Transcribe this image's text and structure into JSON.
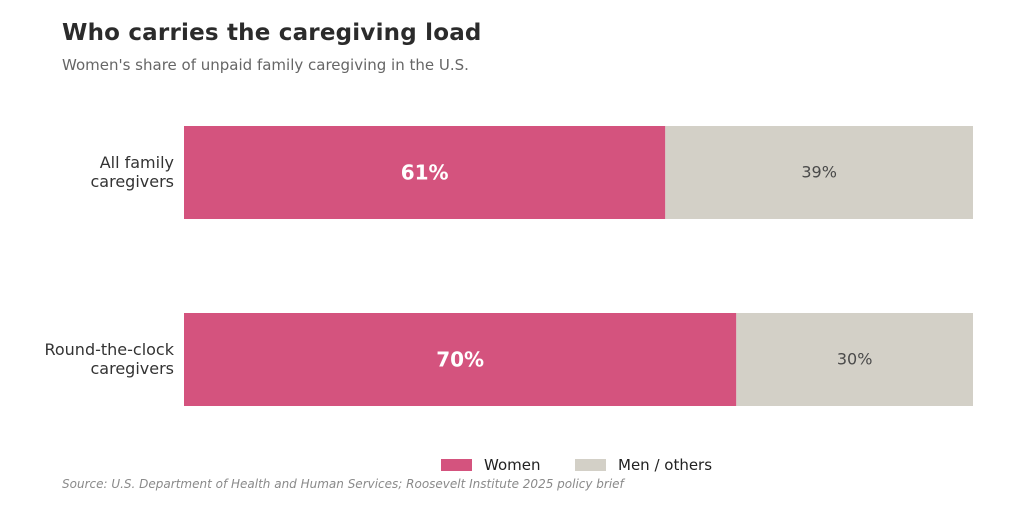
{
  "header": {
    "title": "Who carries the caregiving load",
    "subtitle": "Women's share of unpaid family caregiving in the U.S."
  },
  "source": "Source: U.S. Department of Health and Human Services; Roosevelt Institute 2025 policy brief",
  "chart_data": {
    "type": "bar",
    "orientation": "horizontal",
    "stacked": true,
    "categories": [
      [
        "All family",
        "caregivers"
      ],
      [
        "Round-the-clock",
        "caregivers"
      ]
    ],
    "series": [
      {
        "name": "Women",
        "values": [
          61,
          70
        ],
        "color": "#d4537e",
        "labels": [
          "61%",
          "70%"
        ]
      },
      {
        "name": "Men / others",
        "values": [
          39,
          30
        ],
        "color": "#d3d0c7",
        "labels": [
          "39%",
          "30%"
        ]
      }
    ],
    "xlim": [
      0,
      100
    ],
    "grid": false,
    "legend": "bottom-center"
  }
}
